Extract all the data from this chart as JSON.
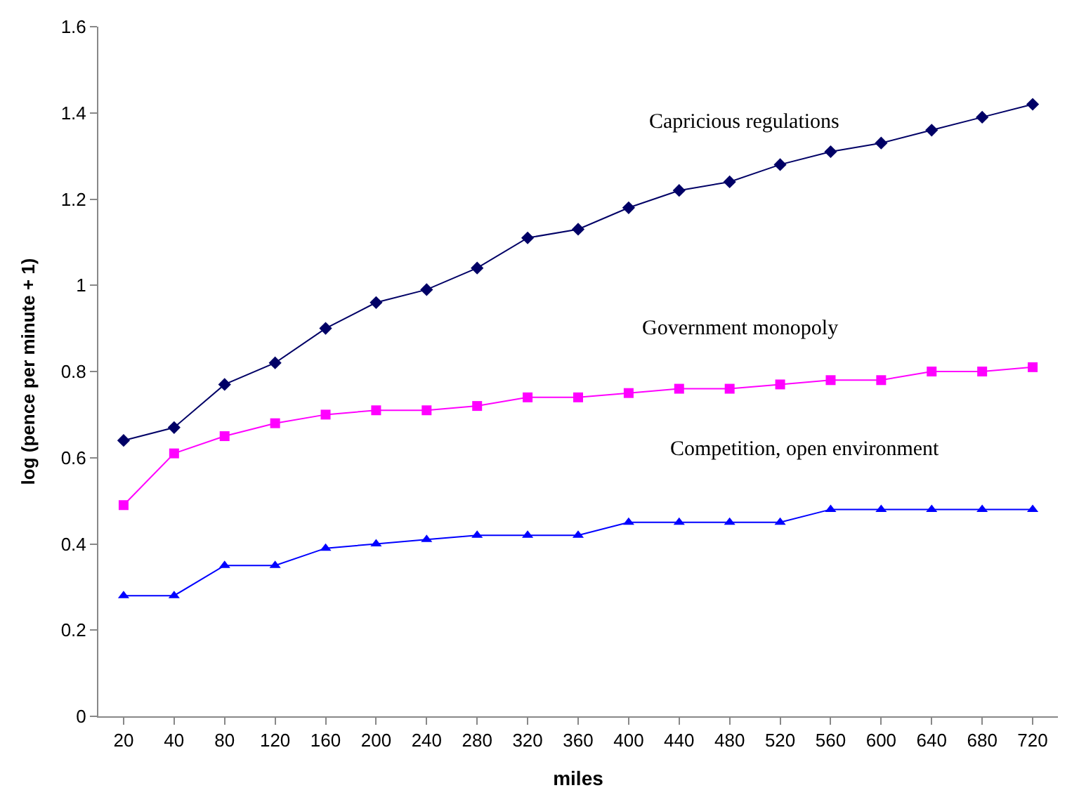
{
  "chart_data": {
    "type": "line",
    "xlabel": "miles",
    "ylabel": "log (pence per minute + 1)",
    "categories": [
      "20",
      "40",
      "80",
      "120",
      "160",
      "200",
      "240",
      "280",
      "320",
      "360",
      "400",
      "440",
      "480",
      "520",
      "560",
      "600",
      "640",
      "680",
      "720"
    ],
    "series": [
      {
        "name": "Capricious regulations",
        "color": "#000066",
        "marker": "diamond",
        "values": [
          0.64,
          0.67,
          0.77,
          0.82,
          0.9,
          0.96,
          0.99,
          1.04,
          1.11,
          1.13,
          1.18,
          1.22,
          1.24,
          1.28,
          1.31,
          1.33,
          1.36,
          1.39,
          1.42
        ]
      },
      {
        "name": "Government monopoly",
        "color": "#ff00ff",
        "marker": "square",
        "values": [
          0.49,
          0.61,
          0.65,
          0.68,
          0.7,
          0.71,
          0.71,
          0.72,
          0.74,
          0.74,
          0.75,
          0.76,
          0.76,
          0.77,
          0.78,
          0.78,
          0.8,
          0.8,
          0.81
        ]
      },
      {
        "name": "Competition, open environment",
        "color": "#0000ff",
        "marker": "triangle",
        "values": [
          0.28,
          0.28,
          0.35,
          0.35,
          0.39,
          0.4,
          0.41,
          0.42,
          0.42,
          0.42,
          0.45,
          0.45,
          0.45,
          0.45,
          0.48,
          0.48,
          0.48,
          0.48,
          0.48
        ]
      }
    ],
    "ylim": [
      0,
      1.6
    ],
    "yticks": [
      0,
      0.2,
      0.4,
      0.6,
      0.8,
      1,
      1.2,
      1.4,
      1.6
    ],
    "grid": false,
    "legend": false,
    "line_style": "solid"
  }
}
